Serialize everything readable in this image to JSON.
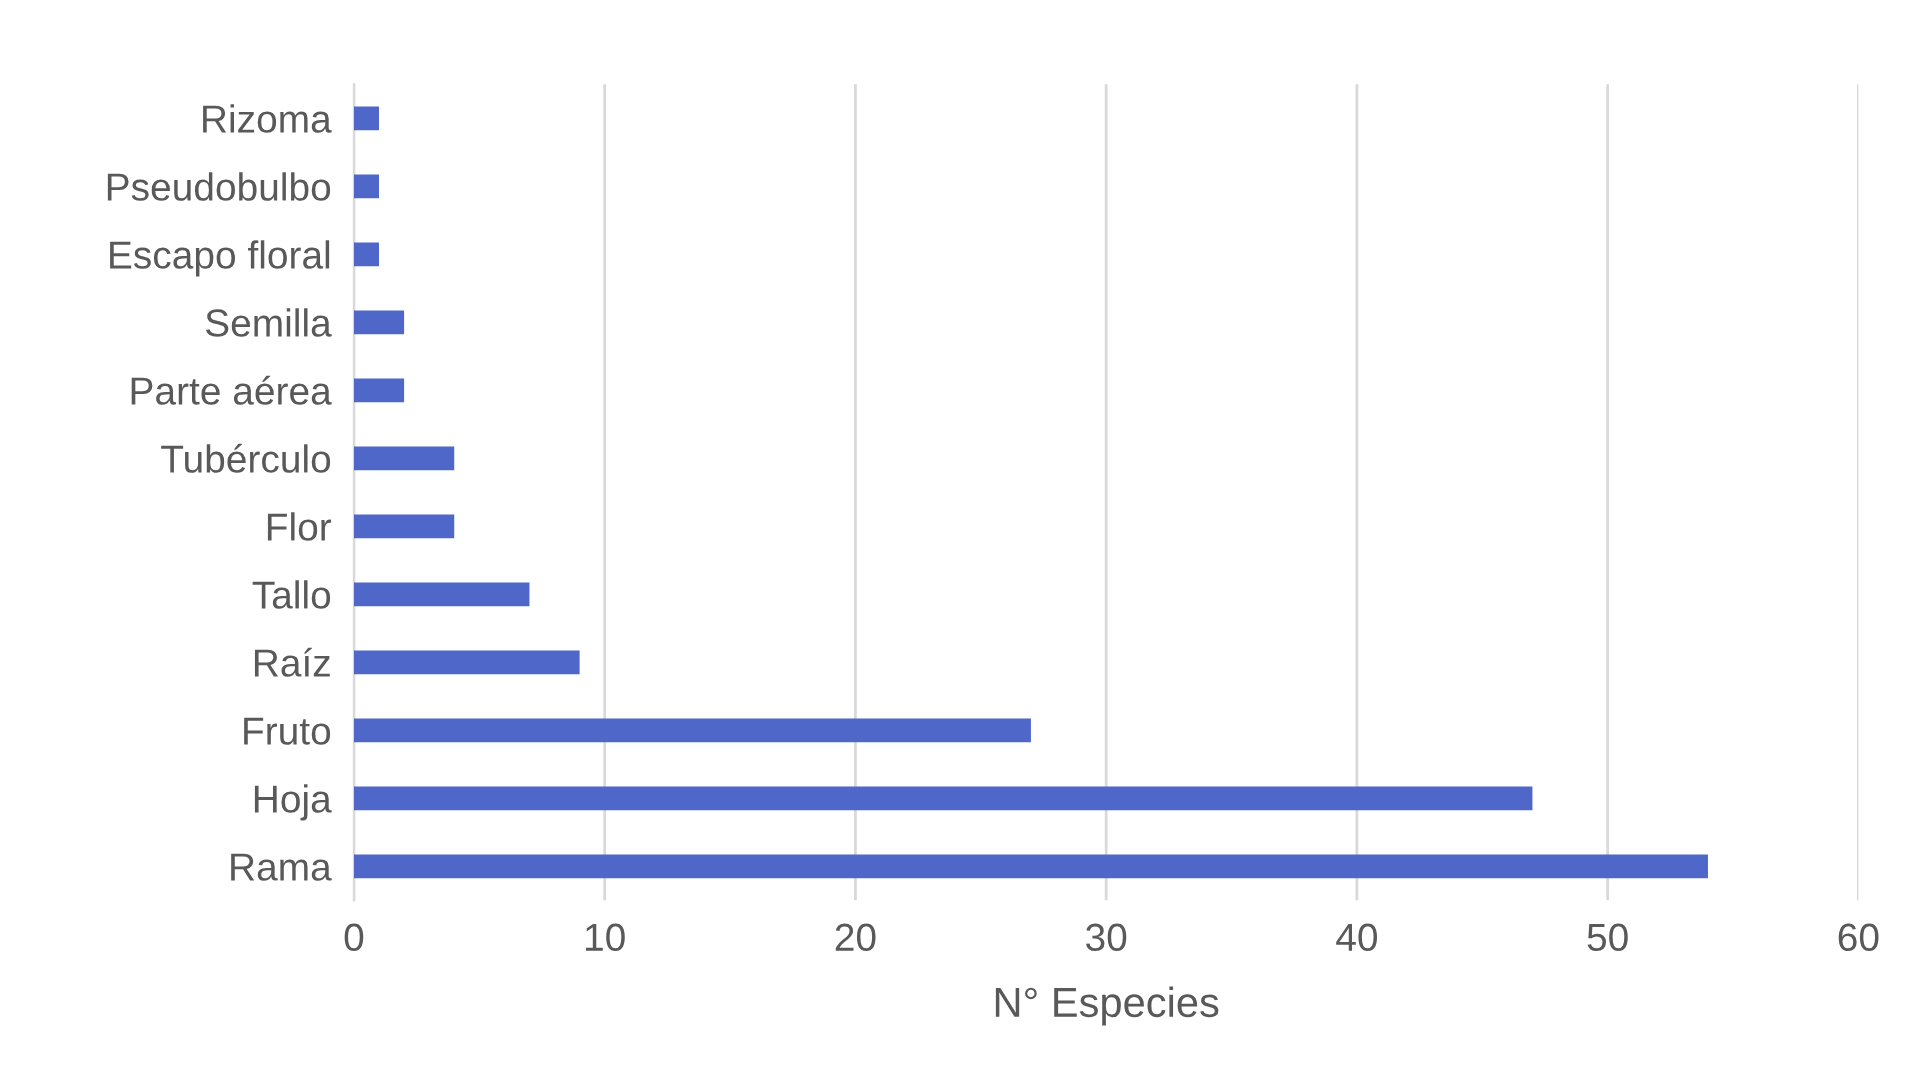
{
  "chart_data": {
    "type": "bar",
    "orientation": "horizontal",
    "xlabel": "N° Especies",
    "categories": [
      "Rizoma",
      "Pseudobulbo",
      "Escapo floral",
      "Semilla",
      "Parte aérea",
      "Tubérculo",
      "Flor",
      "Tallo",
      "Raíz",
      "Fruto",
      "Hoja",
      "Rama"
    ],
    "values": [
      1,
      1,
      1,
      2,
      2,
      4,
      4,
      7,
      9,
      27,
      47,
      54
    ],
    "color": "#4e67c8",
    "xlim": [
      0,
      60
    ],
    "xticks": [
      0,
      10,
      20,
      30,
      40,
      50,
      60
    ],
    "grid": "x"
  }
}
